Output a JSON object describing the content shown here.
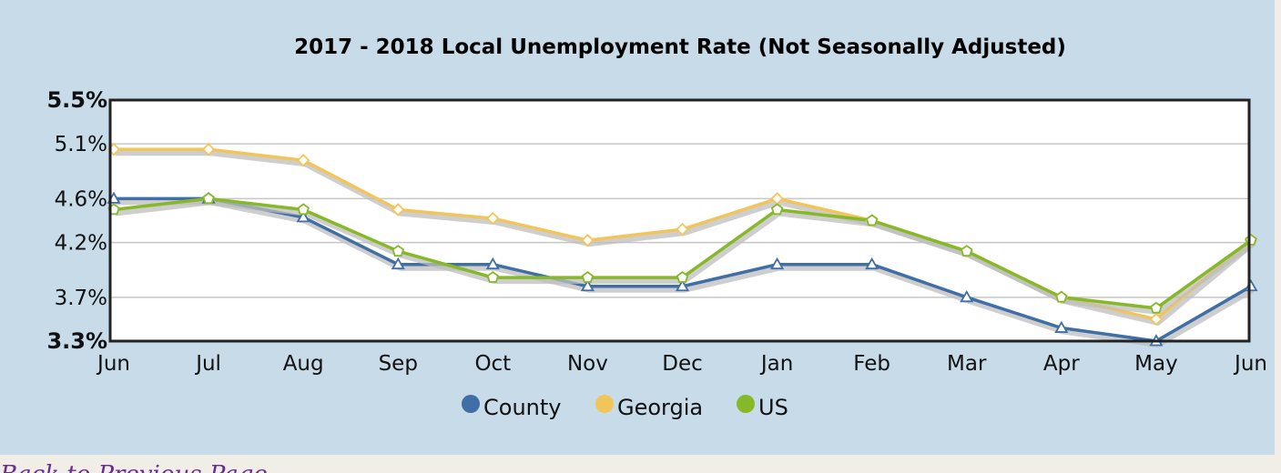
{
  "chart_data": {
    "type": "line",
    "title": "2017 - 2018 Local Unemployment Rate (Not Seasonally Adjusted)",
    "categories": [
      "Jun",
      "Jul",
      "Aug",
      "Sep",
      "Oct",
      "Nov",
      "Dec",
      "Jan",
      "Feb",
      "Mar",
      "Apr",
      "May",
      "Jun"
    ],
    "y_ticks": [
      "5.5%",
      "5.1%",
      "4.6%",
      "4.2%",
      "3.7%",
      "3.3%"
    ],
    "ylim": [
      3.3,
      5.5
    ],
    "grid": true,
    "legend_position": "bottom",
    "series": [
      {
        "name": "County",
        "color": "#3f6fa6",
        "marker": "triangle",
        "values": [
          4.6,
          4.6,
          4.43,
          4.0,
          4.0,
          3.8,
          3.8,
          4.0,
          4.0,
          3.7,
          3.42,
          3.3,
          3.8
        ]
      },
      {
        "name": "Georgia",
        "color": "#f2c55a",
        "marker": "diamond",
        "values": [
          5.05,
          5.05,
          4.95,
          4.5,
          4.42,
          4.22,
          4.32,
          4.6,
          4.4,
          4.12,
          3.7,
          3.5,
          4.22
        ]
      },
      {
        "name": "US",
        "color": "#86b827",
        "marker": "pentagon",
        "values": [
          4.5,
          4.6,
          4.5,
          4.12,
          3.88,
          3.88,
          3.88,
          4.5,
          4.4,
          4.12,
          3.7,
          3.6,
          4.22
        ]
      }
    ]
  },
  "footer": {
    "link_text": "Back to Previous Page"
  }
}
